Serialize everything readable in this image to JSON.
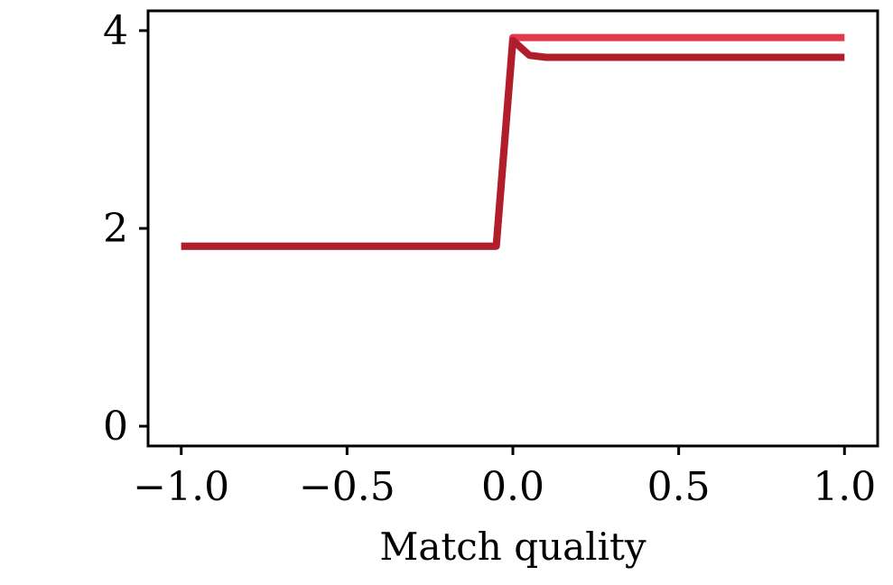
{
  "chart_data": {
    "type": "line",
    "title": "",
    "xlabel": "Match quality",
    "ylabel": "",
    "xlim": [
      -1.1,
      1.1
    ],
    "ylim": [
      -0.2,
      4.2
    ],
    "xticks": [
      -1.0,
      -0.5,
      0.0,
      0.5,
      1.0
    ],
    "xtick_labels": [
      "−1.0",
      "−0.5",
      "0.0",
      "0.5",
      "1.0"
    ],
    "yticks": [
      0,
      2,
      4
    ],
    "ytick_labels": [
      "0",
      "2",
      "4"
    ],
    "grid": false,
    "series": [
      {
        "color": "#e03a4c",
        "x": [
          -1.0,
          -0.05,
          0.0,
          1.0
        ],
        "y": [
          1.82,
          1.82,
          3.93,
          3.93
        ]
      },
      {
        "color": "#b01e2b",
        "x": [
          -1.0,
          -0.05,
          0.0,
          0.05,
          0.1,
          1.0
        ],
        "y": [
          1.82,
          1.82,
          3.9,
          3.75,
          3.73,
          3.73
        ]
      }
    ]
  }
}
